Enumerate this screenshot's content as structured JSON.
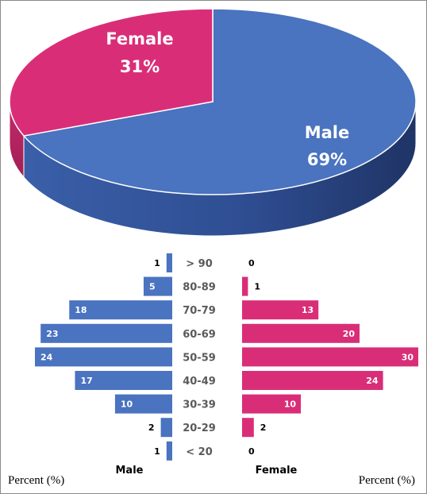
{
  "colors": {
    "male": "#4A73C0",
    "male_side": "#2F4E93",
    "female": "#D92E77",
    "female_side": "#B4235F",
    "age_label": "#5a5a5a"
  },
  "chart_data": [
    {
      "type": "pie",
      "categories": [
        "Male",
        "Female"
      ],
      "values": [
        69,
        31
      ],
      "labels": [
        {
          "category": "Male",
          "percent": "69%"
        },
        {
          "category": "Female",
          "percent": "31%"
        }
      ]
    },
    {
      "type": "bar",
      "orientation": "horizontal-butterfly",
      "categories": [
        "> 90",
        "80-89",
        "70-79",
        "60-69",
        "50-59",
        "40-49",
        "30-39",
        "20-29",
        "< 20"
      ],
      "series": [
        {
          "name": "Male",
          "values": [
            1,
            5,
            18,
            23,
            24,
            17,
            10,
            2,
            1
          ]
        },
        {
          "name": "Female",
          "values": [
            0,
            1,
            13,
            20,
            30,
            24,
            10,
            2,
            0
          ]
        }
      ],
      "xlabel_left": "Percent (%)",
      "xlabel_right": "Percent (%)",
      "xlim": [
        0,
        30
      ]
    }
  ]
}
